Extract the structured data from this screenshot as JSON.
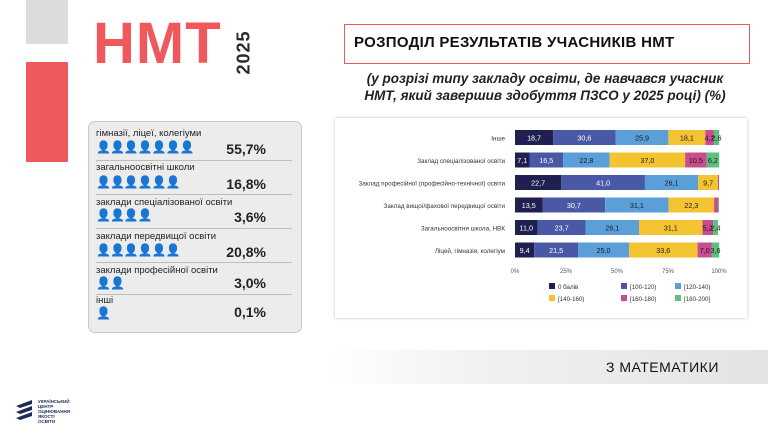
{
  "header": {
    "brand": "НМТ",
    "year": "2025",
    "title": "РОЗПОДІЛ РЕЗУЛЬТАТІВ УЧАСНИКІВ НМТ",
    "subtitle_line1": "(у розрізі типу закладу освіти, де навчався учасник",
    "subtitle_line2": "НМТ, який завершив здобуття ПЗСО  у 2025 році) (%)"
  },
  "categories_panel": [
    {
      "label": "гімназії, ліцеї, колегіуми",
      "value": "55,7%",
      "icons": 7
    },
    {
      "label": "загальноосвітні школи",
      "value": "16,8%",
      "icons": 6
    },
    {
      "label": "заклади спеціалізованої освіти",
      "value": "3,6%",
      "icons": 4
    },
    {
      "label": "заклади передвищої освіти",
      "value": "20,8%",
      "icons": 6
    },
    {
      "label": "заклади професійної освіти",
      "value": "3,0%",
      "icons": 2
    },
    {
      "label": "інші",
      "value": "0,1%",
      "icons": 1
    }
  ],
  "chart_data": {
    "type": "bar",
    "orientation": "horizontal",
    "stacked": true,
    "categories": [
      "Інше",
      "Заклад спеціалізованої освіти",
      "Заклад професійної (професійно-технічної) освіти",
      "Заклад вищої/фахової передвищої освіти",
      "Загальноосвітня школа, НВК",
      "Ліцей,  гімназія, колегіум"
    ],
    "series": [
      {
        "name": "0 балів",
        "color": "#1f2050",
        "values": [
          18.7,
          7.1,
          22.7,
          13.5,
          11.0,
          9.4
        ]
      },
      {
        "name": "[100-120)",
        "color": "#4a59a6",
        "values": [
          30.6,
          16.5,
          41.0,
          30.7,
          23.7,
          21.5
        ]
      },
      {
        "name": "[120-140)",
        "color": "#5b9fd9",
        "values": [
          25.9,
          22.8,
          26.1,
          31.1,
          26.1,
          25.0
        ]
      },
      {
        "name": "[140-160)",
        "color": "#f4c332",
        "values": [
          18.1,
          37.0,
          9.7,
          22.3,
          31.1,
          33.6
        ]
      },
      {
        "name": "[160-180)",
        "color": "#c84c8e",
        "values": [
          4.2,
          10.5,
          0.5,
          1.9,
          5.2,
          7.0
        ]
      },
      {
        "name": "[180-200]",
        "color": "#5fbf7d",
        "values": [
          2.6,
          6.2,
          0.0,
          0.5,
          2.4,
          3.6
        ]
      }
    ],
    "data_labels": [
      [
        "18,7",
        "30,6",
        "25,9",
        "18,1",
        "4,2",
        "2,6"
      ],
      [
        "7,1",
        "16,5",
        "22,8",
        "37,0",
        "10,5",
        "6,2"
      ],
      [
        "22,7",
        "41,0",
        "26,1",
        "9,7",
        "",
        ""
      ],
      [
        "13,5",
        "30,7",
        "31,1",
        "22,3",
        "",
        ""
      ],
      [
        "11,0",
        "23,7",
        "26,1",
        "31,1",
        "5,2",
        "2,4"
      ],
      [
        "9,4",
        "21,5",
        "25,0",
        "33,6",
        "7,0",
        "3,6"
      ]
    ],
    "xticks": [
      "0%",
      "25%",
      "50%",
      "75%",
      "100%"
    ],
    "xlim": [
      0,
      100
    ],
    "legend_position": "bottom"
  },
  "footer": {
    "subject": "З МАТЕМАТИКИ",
    "logo_text": "УКРАЇНСЬКИЙ ЦЕНТР ОЦІНЮВАННЯ ЯКОСТІ ОСВІТИ",
    "logo_icon": "ucoyo-logo-icon"
  }
}
